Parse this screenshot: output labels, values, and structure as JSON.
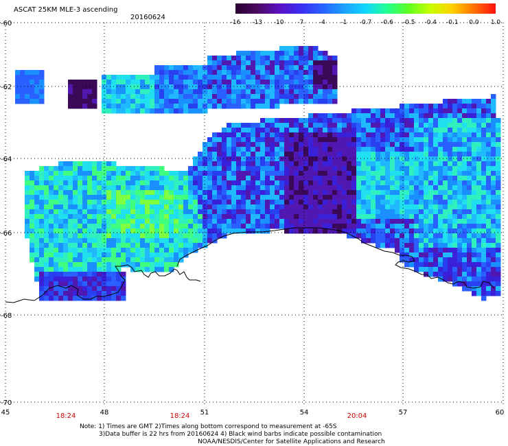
{
  "header": {
    "title": "ASCAT 25KM MLE-3 ascending",
    "date": "20160624"
  },
  "colorbar": {
    "labels": [
      "-16",
      "-13",
      "-10",
      "-7",
      "-4",
      "-1",
      "-0.7",
      "-0.6",
      "-0.5",
      "-0.4",
      "-0.1",
      "0.0",
      "1.0"
    ],
    "colors": [
      "#2a0030",
      "#4a0a60",
      "#5a10c0",
      "#3c2cf0",
      "#2a60ff",
      "#1aa0ff",
      "#10d8ff",
      "#20ff90",
      "#60ff20",
      "#c8ff00",
      "#ffd000",
      "#ff7000",
      "#ff1010"
    ]
  },
  "axes": {
    "lat_labels": [
      "-60",
      "-62",
      "-64",
      "-66",
      "-68",
      "-70"
    ],
    "lon_labels": [
      "45",
      "48",
      "51",
      "54",
      "57",
      "60"
    ],
    "time_labels": [
      "18:24",
      "18:24",
      "20:04"
    ]
  },
  "notes": {
    "line1": "Note: 1) Times are GMT 2)Times along bottom correspond to measurement at -65S",
    "line2": "3)Data buffer is 22 hrs from 20160624 4) Black wind barbs indicate possible contamination",
    "line3": "NOAA/NESDIS/Center for Satellite Applications and Research"
  }
}
